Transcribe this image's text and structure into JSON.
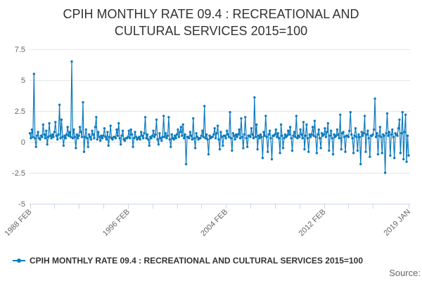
{
  "title": "CPIH MONTHLY RATE 09.4 : RECREATIONAL AND CULTURAL SERVICES 2015=100",
  "legend": {
    "label": "CPIH MONTHLY RATE 09.4 : RECREATIONAL AND CULTURAL SERVICES 2015=100"
  },
  "source_label": "Source:",
  "colors": {
    "series": "#0d7abe",
    "grid": "#e6e6e6",
    "axis_line": "#ccd6eb",
    "title_text": "#333333",
    "axis_text": "#666666",
    "legend_text": "#333333",
    "source_text": "#666666",
    "background": "#ffffff"
  },
  "chart_data": {
    "type": "line",
    "title": "CPIH MONTHLY RATE 09.4 : RECREATIONAL AND CULTURAL SERVICES 2015=100",
    "series_name": "CPIH MONTHLY RATE 09.4 : RECREATIONAL AND CULTURAL SERVICES 2015=100",
    "xlabel": "",
    "ylabel": "",
    "x_unit": "month",
    "x_start": "1988 FEB",
    "x_end": "2019 JAN",
    "ylim": [
      -5,
      7.5
    ],
    "grid": "horizontal-only",
    "legend_position": "bottom-left",
    "markers": true,
    "y_ticks": [
      {
        "v": 7.5,
        "label": "7.5"
      },
      {
        "v": 5,
        "label": "5"
      },
      {
        "v": 2.5,
        "label": "2.5"
      },
      {
        "v": 0,
        "label": "0"
      },
      {
        "v": -2.5,
        "label": "-2.5"
      },
      {
        "v": -5,
        "label": "-5"
      }
    ],
    "x_ticks_months": [
      0,
      24,
      48,
      72,
      96,
      120,
      144,
      168,
      192,
      216,
      240,
      264,
      288,
      312,
      336,
      371
    ],
    "x_tick_labels": [
      {
        "m": 0,
        "label": "1988 FEB"
      },
      {
        "m": 96,
        "label": "1996 FEB"
      },
      {
        "m": 192,
        "label": "2004 FEB"
      },
      {
        "m": 288,
        "label": "2012 FEB"
      },
      {
        "m": 371,
        "label": "2019 JAN"
      }
    ],
    "start_month": "1988-02",
    "values_by_year": {
      "1988": [
        0.7,
        0.3,
        1.0,
        0.4,
        5.5,
        0.3,
        -0.4,
        0.5,
        0.8,
        0.3,
        0.2
      ],
      "1989": [
        0.5,
        0.4,
        1.4,
        0.6,
        0.3,
        0.9,
        -0.2,
        0.4,
        1.5,
        0.5,
        0.3,
        0.6
      ],
      "1990": [
        0.4,
        0.8,
        1.6,
        0.5,
        0.2,
        0.6,
        3.0,
        0.3,
        1.8,
        0.4,
        -0.3,
        0.5
      ],
      "1991": [
        0.3,
        0.6,
        1.2,
        0.5,
        0.8,
        0.4,
        6.5,
        0.3,
        1.0,
        0.4,
        -0.5,
        0.6
      ],
      "1992": [
        0.3,
        0.5,
        1.2,
        0.8,
        0.4,
        3.2,
        -0.8,
        0.4,
        1.0,
        0.3,
        -0.4,
        0.6
      ],
      "1993": [
        0.4,
        0.2,
        0.9,
        0.6,
        0.3,
        1.2,
        2.0,
        0.2,
        0.8,
        0.4,
        0.1,
        0.5
      ],
      "1994": [
        0.3,
        0.5,
        1.1,
        0.4,
        0.2,
        0.8,
        -0.3,
        0.4,
        1.3,
        0.3,
        0.2,
        0.4
      ],
      "1995": [
        0.4,
        0.3,
        1.0,
        0.5,
        1.5,
        0.3,
        -0.2,
        0.5,
        0.9,
        0.2,
        0.1,
        0.3
      ],
      "1996": [
        0.3,
        0.4,
        0.9,
        0.3,
        1.0,
        0.6,
        -0.4,
        0.3,
        0.8,
        0.4,
        0.2,
        0.3
      ],
      "1997": [
        0.4,
        0.2,
        0.8,
        0.5,
        0.3,
        0.7,
        2.0,
        0.3,
        0.6,
        0.2,
        -0.3,
        0.4
      ],
      "1998": [
        0.3,
        0.5,
        0.9,
        0.4,
        0.6,
        1.8,
        0.2,
        -0.2,
        0.7,
        0.3,
        0.1,
        0.4
      ],
      "1999": [
        2.1,
        0.4,
        0.7,
        0.3,
        0.5,
        2.0,
        0.2,
        -0.4,
        0.6,
        0.3,
        0.2,
        0.5
      ],
      "2000": [
        0.3,
        0.6,
        1.0,
        0.4,
        0.8,
        1.2,
        0.5,
        1.4,
        0.3,
        0.6,
        -1.8,
        0.4
      ],
      "2001": [
        0.4,
        0.3,
        0.8,
        0.5,
        0.2,
        1.9,
        0.3,
        -0.5,
        0.7,
        0.4,
        0.2,
        0.3
      ],
      "2002": [
        0.3,
        0.5,
        0.9,
        0.4,
        2.9,
        0.3,
        0.6,
        0.2,
        -1.0,
        0.5,
        0.3,
        0.4
      ],
      "2003": [
        0.4,
        0.6,
        1.1,
        0.3,
        0.7,
        1.3,
        0.2,
        -0.6,
        0.8,
        0.4,
        -0.3,
        0.5
      ],
      "2004": [
        0.5,
        0.3,
        0.9,
        0.6,
        0.4,
        2.4,
        0.3,
        -0.7,
        0.7,
        0.5,
        0.2,
        0.6
      ],
      "2005": [
        0.4,
        0.6,
        1.0,
        0.3,
        1.9,
        0.4,
        -0.5,
        0.6,
        2.0,
        0.3,
        -0.4,
        0.5
      ],
      "2006": [
        0.5,
        0.4,
        1.1,
        0.6,
        0.3,
        3.6,
        0.4,
        1.4,
        -0.6,
        0.5,
        0.3,
        0.6
      ],
      "2007": [
        0.4,
        -1.3,
        0.8,
        0.5,
        2.1,
        0.4,
        -0.8,
        0.6,
        0.9,
        0.3,
        -1.4,
        0.5
      ],
      "2008": [
        0.5,
        0.6,
        1.0,
        0.4,
        0.7,
        0.3,
        -0.9,
        1.4,
        0.5,
        -0.5,
        0.3,
        0.6
      ],
      "2009": [
        0.4,
        0.5,
        0.9,
        0.6,
        1.2,
        0.3,
        -0.7,
        0.5,
        0.8,
        0.4,
        2.1,
        0.3
      ],
      "2010": [
        0.5,
        0.4,
        1.0,
        0.6,
        0.3,
        1.6,
        -0.6,
        0.5,
        1.4,
        0.3,
        -0.8,
        0.6
      ],
      "2011": [
        0.4,
        0.6,
        1.2,
        0.5,
        1.7,
        0.4,
        -0.9,
        0.6,
        1.0,
        0.3,
        -0.5,
        0.7
      ],
      "2012": [
        0.5,
        0.6,
        1.1,
        0.4,
        0.8,
        1.5,
        -0.7,
        0.5,
        0.9,
        0.3,
        -1.0,
        0.6
      ],
      "2013": [
        0.4,
        0.5,
        1.0,
        0.6,
        0.3,
        2.2,
        -0.6,
        0.7,
        0.8,
        0.4,
        -0.8,
        0.5
      ],
      "2014": [
        0.5,
        0.4,
        0.9,
        2.4,
        0.6,
        0.3,
        -0.9,
        0.5,
        1.1,
        0.4,
        -0.7,
        0.6
      ],
      "2015": [
        0.4,
        -1.8,
        0.8,
        0.5,
        0.7,
        2.1,
        -0.8,
        0.6,
        0.9,
        0.3,
        -1.2,
        0.5
      ],
      "2016": [
        0.5,
        0.6,
        1.0,
        3.5,
        0.4,
        0.7,
        -1.0,
        0.5,
        1.2,
        0.4,
        -0.9,
        0.6
      ],
      "2017": [
        0.5,
        -2.5,
        0.7,
        2.3,
        0.5,
        0.8,
        -1.1,
        0.6,
        1.0,
        0.4,
        -1.3,
        0.7
      ],
      "2018": [
        0.6,
        0.5,
        1.1,
        1.8,
        -0.9,
        0.7,
        2.4,
        -1.4,
        0.8,
        2.2,
        -1.6,
        0.5
      ],
      "2019": [
        -1.1
      ]
    }
  }
}
